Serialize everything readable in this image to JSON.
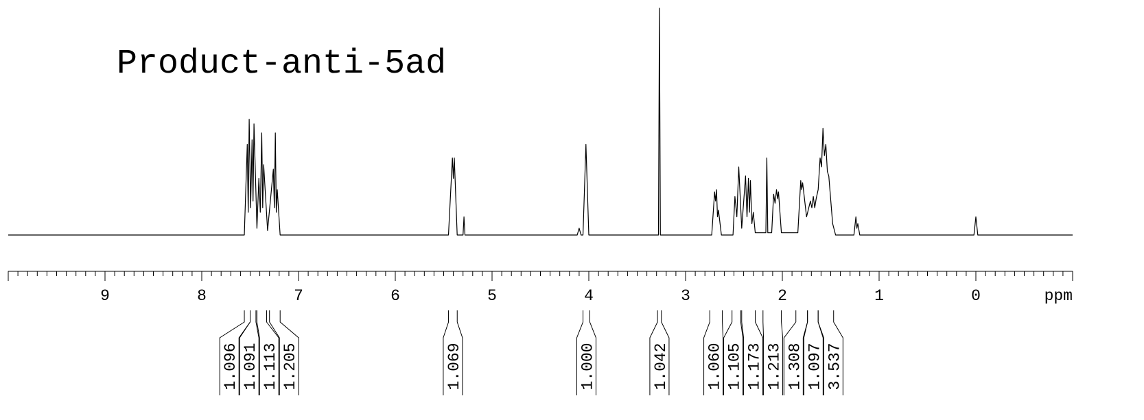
{
  "chart_data": {
    "type": "nmr",
    "title": "Product-anti-5ad",
    "xlabel": "ppm",
    "xlim": [
      10,
      -1
    ],
    "xticks": [
      9,
      8,
      7,
      6,
      5,
      4,
      3,
      2,
      1,
      0
    ],
    "minor_tick_step": 0.1,
    "ylim": [
      0,
      100
    ],
    "color": "#000000",
    "x": [
      10,
      7.56,
      7.53,
      7.52,
      7.51,
      7.495,
      7.48,
      7.47,
      7.46,
      7.43,
      7.41,
      7.395,
      7.38,
      7.37,
      7.36,
      7.32,
      7.26,
      7.25,
      7.24,
      7.23,
      7.22,
      7.19,
      5.45,
      5.41,
      5.4,
      5.39,
      5.36,
      5.3,
      5.29,
      5.28,
      4.12,
      4.1,
      4.08,
      4.06,
      4.03,
      4.0,
      3.28,
      3.27,
      3.26,
      2.73,
      2.7,
      2.69,
      2.68,
      2.67,
      2.66,
      2.63,
      2.51,
      2.49,
      2.47,
      2.45,
      2.42,
      2.38,
      2.365,
      2.35,
      2.34,
      2.33,
      2.315,
      2.3,
      2.28,
      2.17,
      2.16,
      2.15,
      2.11,
      2.09,
      2.075,
      2.06,
      2.05,
      2.04,
      2.01,
      1.84,
      1.81,
      1.8,
      1.79,
      1.75,
      1.71,
      1.695,
      1.68,
      1.665,
      1.65,
      1.63,
      1.61,
      1.595,
      1.58,
      1.565,
      1.55,
      1.535,
      1.52,
      1.48,
      1.45,
      1.26,
      1.24,
      1.23,
      1.22,
      1.2,
      0.02,
      0.0,
      -0.02,
      -1
    ],
    "values": [
      0,
      0,
      40,
      10,
      51,
      12,
      42,
      15,
      49,
      3,
      25,
      10,
      45,
      12,
      31,
      2,
      29,
      12,
      45,
      10,
      20,
      0,
      0,
      34,
      25,
      34,
      0,
      0,
      8,
      0,
      0,
      3,
      0,
      0,
      40,
      0,
      0,
      100,
      0,
      0,
      19,
      15,
      20,
      8,
      11,
      0,
      0,
      17,
      8,
      30,
      3,
      26,
      8,
      25,
      10,
      24,
      5,
      10,
      1,
      1,
      34,
      1,
      1,
      18,
      14,
      20,
      16,
      19,
      1,
      1,
      24,
      20,
      23,
      8,
      15,
      12,
      17,
      12,
      16,
      20,
      34,
      30,
      47,
      35,
      40,
      28,
      26,
      5,
      0,
      0,
      8,
      3,
      5,
      0,
      0,
      8,
      0,
      0
    ],
    "integrals": [
      {
        "value": 1.096,
        "label": "1.096",
        "from": 7.56,
        "to": 7.5
      },
      {
        "value": 1.091,
        "label": "1.091",
        "from": 7.5,
        "to": 7.44
      },
      {
        "value": 1.113,
        "label": "1.113",
        "from": 7.43,
        "to": 7.33
      },
      {
        "value": 1.205,
        "label": "1.205",
        "from": 7.3,
        "to": 7.19
      },
      {
        "value": 1.069,
        "label": "1.069",
        "from": 5.45,
        "to": 5.36
      },
      {
        "value": 1.0,
        "label": "1.000",
        "from": 4.06,
        "to": 3.99
      },
      {
        "value": 1.042,
        "label": "1.042",
        "from": 3.29,
        "to": 3.25
      },
      {
        "value": 1.06,
        "label": "1.060",
        "from": 2.75,
        "to": 2.62
      },
      {
        "value": 1.105,
        "label": "1.105",
        "from": 2.52,
        "to": 2.43
      },
      {
        "value": 1.173,
        "label": "1.173",
        "from": 2.42,
        "to": 2.28
      },
      {
        "value": 1.213,
        "label": "1.213",
        "from": 2.2,
        "to": 2.01
      },
      {
        "value": 1.308,
        "label": "1.308",
        "from": 1.86,
        "to": 1.74
      },
      {
        "value": 1.097,
        "label": "1.097",
        "from": 1.74,
        "to": 1.63
      },
      {
        "value": 3.537,
        "label": "3.537",
        "from": 1.63,
        "to": 1.47
      }
    ]
  }
}
